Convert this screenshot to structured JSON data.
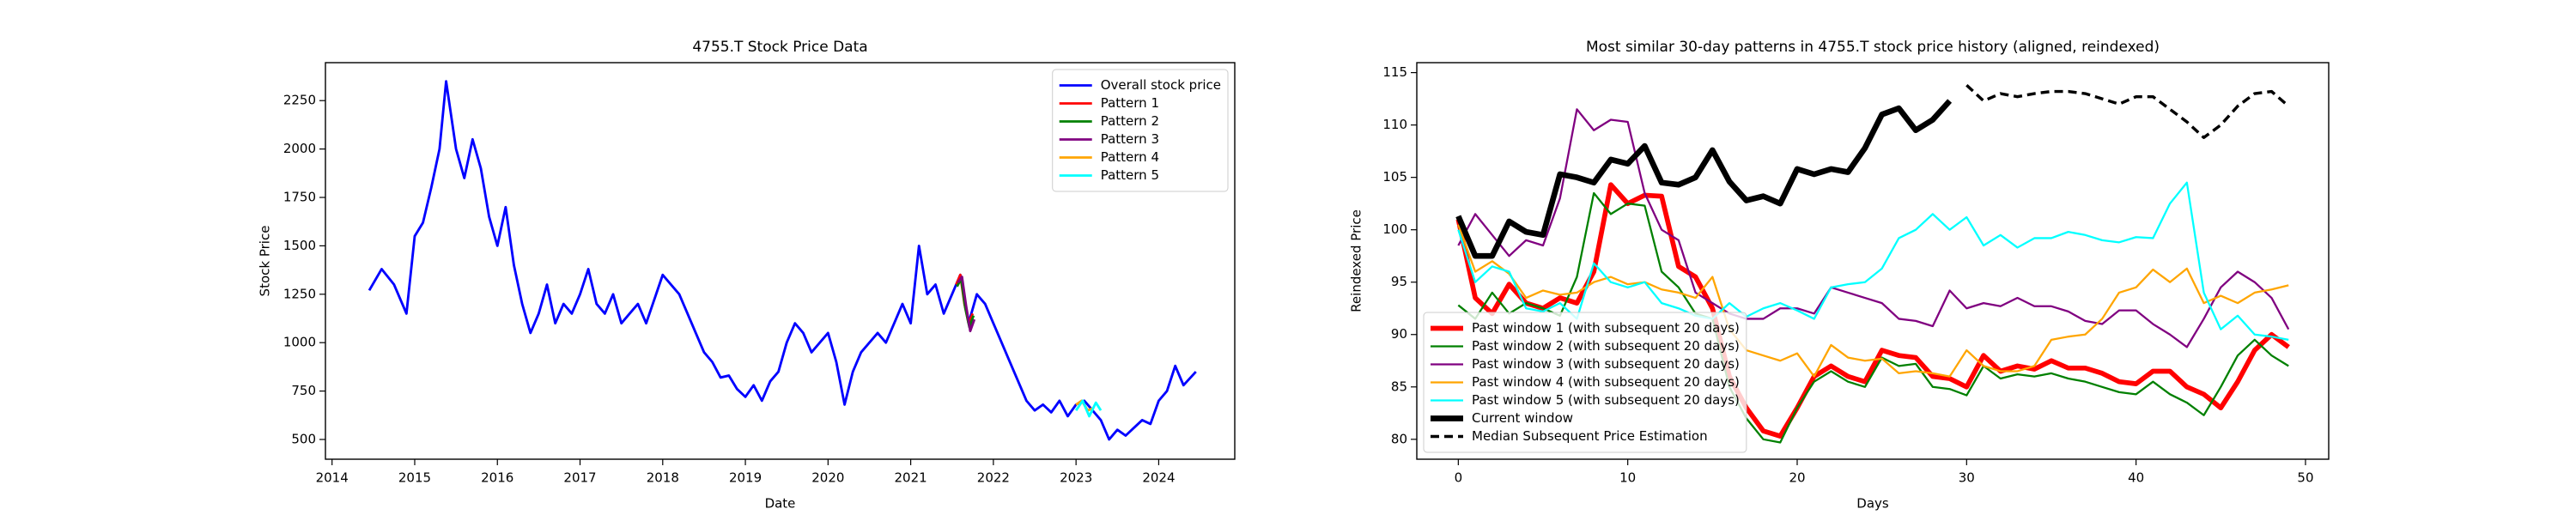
{
  "chart_data": [
    {
      "type": "line",
      "title": "4755.T Stock Price Data",
      "xlabel": "Date",
      "ylabel": "Stock Price",
      "xlim": [
        2013.92,
        2024.92
      ],
      "ylim": [
        398,
        2446
      ],
      "xticks": [
        2014,
        2015,
        2016,
        2017,
        2018,
        2019,
        2020,
        2021,
        2022,
        2023,
        2024
      ],
      "yticks": [
        500,
        750,
        1000,
        1250,
        1500,
        1750,
        2000,
        2250
      ],
      "legend": "upper right",
      "series": [
        {
          "name": "Overall stock price",
          "color": "#0000ff",
          "linewidth": 1.5,
          "x": [
            2014.45,
            2014.6,
            2014.75,
            2014.9,
            2015.0,
            2015.1,
            2015.2,
            2015.3,
            2015.38,
            2015.5,
            2015.6,
            2015.7,
            2015.8,
            2015.9,
            2016.0,
            2016.1,
            2016.2,
            2016.3,
            2016.4,
            2016.5,
            2016.6,
            2016.7,
            2016.8,
            2016.9,
            2017.0,
            2017.1,
            2017.2,
            2017.3,
            2017.4,
            2017.5,
            2017.6,
            2017.7,
            2017.8,
            2018.0,
            2018.1,
            2018.2,
            2018.3,
            2018.4,
            2018.5,
            2018.6,
            2018.7,
            2018.8,
            2018.9,
            2019.0,
            2019.1,
            2019.2,
            2019.3,
            2019.4,
            2019.5,
            2019.6,
            2019.7,
            2019.8,
            2019.9,
            2020.0,
            2020.1,
            2020.2,
            2020.3,
            2020.4,
            2020.5,
            2020.6,
            2020.7,
            2020.8,
            2020.9,
            2021.0,
            2021.1,
            2021.2,
            2021.3,
            2021.4,
            2021.5,
            2021.6,
            2021.7,
            2021.8,
            2021.9,
            2022.0,
            2022.1,
            2022.2,
            2022.3,
            2022.4,
            2022.5,
            2022.6,
            2022.7,
            2022.8,
            2022.9,
            2023.0,
            2023.1,
            2023.2,
            2023.3,
            2023.4,
            2023.5,
            2023.6,
            2023.7,
            2023.8,
            2023.9,
            2024.0,
            2024.1,
            2024.2,
            2024.3,
            2024.45
          ],
          "values": [
            1270,
            1380,
            1300,
            1150,
            1550,
            1620,
            1800,
            2000,
            2350,
            2000,
            1850,
            2050,
            1900,
            1650,
            1500,
            1700,
            1400,
            1200,
            1050,
            1150,
            1300,
            1100,
            1200,
            1150,
            1250,
            1380,
            1200,
            1150,
            1250,
            1100,
            1150,
            1200,
            1100,
            1350,
            1300,
            1250,
            1150,
            1050,
            950,
            900,
            820,
            830,
            760,
            720,
            780,
            700,
            800,
            850,
            1000,
            1100,
            1050,
            950,
            1000,
            1050,
            900,
            680,
            850,
            950,
            1000,
            1050,
            1000,
            1100,
            1200,
            1100,
            1500,
            1250,
            1300,
            1150,
            1250,
            1350,
            1100,
            1250,
            1200,
            1100,
            1000,
            900,
            800,
            700,
            650,
            680,
            640,
            700,
            620,
            680,
            700,
            650,
            600,
            500,
            550,
            520,
            560,
            600,
            580,
            700,
            750,
            880,
            780,
            850
          ]
        },
        {
          "name": "Pattern 1",
          "color": "#ff0000",
          "linewidth": 1.5,
          "x": [
            2021.55,
            2021.6,
            2021.65,
            2021.7,
            2021.75
          ],
          "values": [
            1300,
            1350,
            1200,
            1100,
            1150
          ]
        },
        {
          "name": "Pattern 2",
          "color": "#008000",
          "linewidth": 1.5,
          "x": [
            2021.56,
            2021.61,
            2021.66,
            2021.71,
            2021.76
          ],
          "values": [
            1290,
            1330,
            1180,
            1080,
            1140
          ]
        },
        {
          "name": "Pattern 3",
          "color": "#800080",
          "linewidth": 1.5,
          "x": [
            2021.57,
            2021.62,
            2021.67,
            2021.72,
            2021.77
          ],
          "values": [
            1310,
            1340,
            1190,
            1060,
            1120
          ]
        },
        {
          "name": "Pattern 4",
          "color": "#ffa500",
          "linewidth": 1.5,
          "x": [
            2023.0,
            2023.07,
            2023.14,
            2023.2
          ],
          "values": [
            680,
            700,
            650,
            660
          ]
        },
        {
          "name": "Pattern 5",
          "color": "#00ffff",
          "linewidth": 1.5,
          "x": [
            2023.0,
            2023.08,
            2023.16,
            2023.24,
            2023.3
          ],
          "values": [
            650,
            700,
            620,
            690,
            650
          ]
        }
      ]
    },
    {
      "type": "line",
      "title": "Most similar 30-day patterns in 4755.T stock price history (aligned, reindexed)",
      "xlabel": "Days",
      "ylabel": "Reindexed Price",
      "xlim": [
        -2.45,
        51.37
      ],
      "ylim": [
        78.1,
        115.95
      ],
      "xticks": [
        0,
        10,
        20,
        30,
        40,
        50
      ],
      "yticks": [
        80,
        85,
        90,
        95,
        100,
        105,
        110,
        115
      ],
      "legend": "lower left",
      "series": [
        {
          "name": "Past window 1 (with subsequent 20 days)",
          "color": "#ff0000",
          "linewidth": 3,
          "x": [
            0,
            1,
            2,
            3,
            4,
            5,
            6,
            7,
            8,
            9,
            10,
            11,
            12,
            13,
            14,
            15,
            16,
            17,
            18,
            19,
            20,
            21,
            22,
            23,
            24,
            25,
            26,
            27,
            28,
            29,
            30,
            31,
            32,
            33,
            34,
            35,
            36,
            37,
            38,
            39,
            40,
            41,
            42,
            43,
            44,
            45,
            46,
            47,
            48,
            49
          ],
          "values": [
            101,
            93.5,
            92,
            94.8,
            93,
            92.5,
            93.5,
            93,
            96,
            104.3,
            102.5,
            103.3,
            103.2,
            96.5,
            95.5,
            92.5,
            86,
            83,
            80.8,
            80.3,
            83,
            86,
            87,
            86,
            85.5,
            88.5,
            88,
            87.8,
            86,
            85.8,
            85,
            88,
            86.5,
            87,
            86.7,
            87.5,
            86.8,
            86.8,
            86.3,
            85.5,
            85.3,
            86.5,
            86.5,
            85,
            84.3,
            83,
            85.5,
            88.5,
            90,
            88.8
          ]
        },
        {
          "name": "Past window 2 (with subsequent 20 days)",
          "color": "#008000",
          "linewidth": 1.2,
          "x": [
            0,
            1,
            2,
            3,
            4,
            5,
            6,
            7,
            8,
            9,
            10,
            11,
            12,
            13,
            14,
            15,
            16,
            17,
            18,
            19,
            20,
            21,
            22,
            23,
            24,
            25,
            26,
            27,
            28,
            29,
            30,
            31,
            32,
            33,
            34,
            35,
            36,
            37,
            38,
            39,
            40,
            41,
            42,
            43,
            44,
            45,
            46,
            47,
            48,
            49
          ],
          "values": [
            92.8,
            91.5,
            94,
            92,
            93,
            92.5,
            91.8,
            95.5,
            103.5,
            101.5,
            102.5,
            102.3,
            96,
            94.5,
            92,
            91.5,
            85,
            82,
            80,
            79.7,
            83,
            85.5,
            86.5,
            85.5,
            85,
            87.8,
            87,
            87.2,
            85,
            84.8,
            84.2,
            87,
            85.8,
            86.2,
            86,
            86.3,
            85.8,
            85.5,
            85,
            84.5,
            84.3,
            85.5,
            84.3,
            83.5,
            82.3,
            85,
            88,
            89.5,
            88,
            87
          ]
        },
        {
          "name": "Past window 3 (with subsequent 20 days)",
          "color": "#800080",
          "linewidth": 1.2,
          "x": [
            0,
            1,
            2,
            3,
            4,
            5,
            6,
            7,
            8,
            9,
            10,
            11,
            12,
            13,
            14,
            15,
            16,
            17,
            18,
            19,
            20,
            21,
            22,
            23,
            24,
            25,
            26,
            27,
            28,
            29,
            30,
            31,
            32,
            33,
            34,
            35,
            36,
            37,
            38,
            39,
            40,
            41,
            42,
            43,
            44,
            45,
            46,
            47,
            48,
            49
          ],
          "values": [
            98.5,
            101.5,
            99.5,
            97.5,
            99,
            98.5,
            103,
            111.5,
            109.5,
            110.5,
            110.3,
            103.5,
            100,
            99,
            94,
            93,
            92,
            91.5,
            91.5,
            92.5,
            92.5,
            92,
            94.5,
            94,
            93.5,
            93,
            91.5,
            91.3,
            90.8,
            94.2,
            92.5,
            93,
            92.7,
            93.5,
            92.7,
            92.7,
            92.2,
            91.3,
            91,
            92.3,
            92.3,
            91,
            90,
            88.8,
            91.5,
            94.5,
            96,
            95,
            93.5,
            90.5
          ]
        },
        {
          "name": "Past window 4 (with subsequent 20 days)",
          "color": "#ffa500",
          "linewidth": 1.2,
          "x": [
            0,
            1,
            2,
            3,
            4,
            5,
            6,
            7,
            8,
            9,
            10,
            11,
            12,
            13,
            14,
            15,
            16,
            17,
            18,
            19,
            20,
            21,
            22,
            23,
            24,
            25,
            26,
            27,
            28,
            29,
            30,
            31,
            32,
            33,
            34,
            35,
            36,
            37,
            38,
            39,
            40,
            41,
            42,
            43,
            44,
            45,
            46,
            47,
            48,
            49
          ],
          "values": [
            100.5,
            96,
            97,
            95.8,
            93.5,
            94.2,
            93.8,
            94,
            95,
            95.5,
            94.8,
            95,
            94.3,
            94,
            93.5,
            95.5,
            90.5,
            88.5,
            88,
            87.5,
            88.2,
            86,
            89,
            87.8,
            87.5,
            87.7,
            86.3,
            86.5,
            86.3,
            86,
            88.5,
            87,
            86.5,
            86.5,
            87,
            89.5,
            89.8,
            90,
            91.5,
            94,
            94.5,
            96.2,
            95,
            96.3,
            93,
            93.7,
            93,
            94,
            94.3,
            94.7
          ]
        },
        {
          "name": "Past window 5 (with subsequent 20 days)",
          "color": "#00ffff",
          "linewidth": 1.2,
          "x": [
            0,
            1,
            2,
            3,
            4,
            5,
            6,
            7,
            8,
            9,
            10,
            11,
            12,
            13,
            14,
            15,
            16,
            17,
            18,
            19,
            20,
            21,
            22,
            23,
            24,
            25,
            26,
            27,
            28,
            29,
            30,
            31,
            32,
            33,
            34,
            35,
            36,
            37,
            38,
            39,
            40,
            41,
            42,
            43,
            44,
            45,
            46,
            47,
            48,
            49
          ],
          "values": [
            100,
            95,
            96.5,
            96,
            92.5,
            92.2,
            93,
            91.5,
            96.8,
            95,
            94.5,
            95,
            93,
            92.5,
            91.8,
            91.5,
            93,
            91.7,
            92.5,
            93,
            92.3,
            91.5,
            94.5,
            94.8,
            95,
            96.3,
            99.2,
            100,
            101.5,
            100,
            101.2,
            98.5,
            99.5,
            98.3,
            99.2,
            99.2,
            99.8,
            99.5,
            99,
            98.8,
            99.3,
            99.2,
            102.5,
            104.5,
            94,
            90.5,
            91.8,
            90,
            89.8,
            89.5
          ]
        },
        {
          "name": "Current window",
          "color": "#000000",
          "linewidth": 3.5,
          "x": [
            0,
            1,
            2,
            3,
            4,
            5,
            6,
            7,
            8,
            9,
            10,
            11,
            12,
            13,
            14,
            15,
            16,
            17,
            18,
            19,
            20,
            21,
            22,
            23,
            24,
            25,
            26,
            27,
            28,
            29
          ],
          "values": [
            101.3,
            97.5,
            97.5,
            100.8,
            99.8,
            99.5,
            105.3,
            105,
            104.5,
            106.7,
            106.3,
            108,
            104.5,
            104.3,
            105,
            107.6,
            104.6,
            102.8,
            103.2,
            102.5,
            105.8,
            105.3,
            105.8,
            105.5,
            107.8,
            111,
            111.6,
            109.5,
            110.5,
            112.3
          ]
        },
        {
          "name": "Median Subsequent Price Estimation",
          "color": "#000000",
          "linewidth": 1.8,
          "linestyle": "dashed",
          "x": [
            30,
            31,
            32,
            33,
            34,
            35,
            36,
            37,
            38,
            39,
            40,
            41,
            42,
            43,
            44,
            45,
            46,
            47,
            48,
            49
          ],
          "values": [
            113.8,
            112.3,
            113,
            112.7,
            113,
            113.2,
            113.2,
            113,
            112.5,
            112,
            112.7,
            112.7,
            111.5,
            110.3,
            108.8,
            110,
            111.8,
            113,
            113.2,
            111.8
          ]
        }
      ]
    }
  ]
}
